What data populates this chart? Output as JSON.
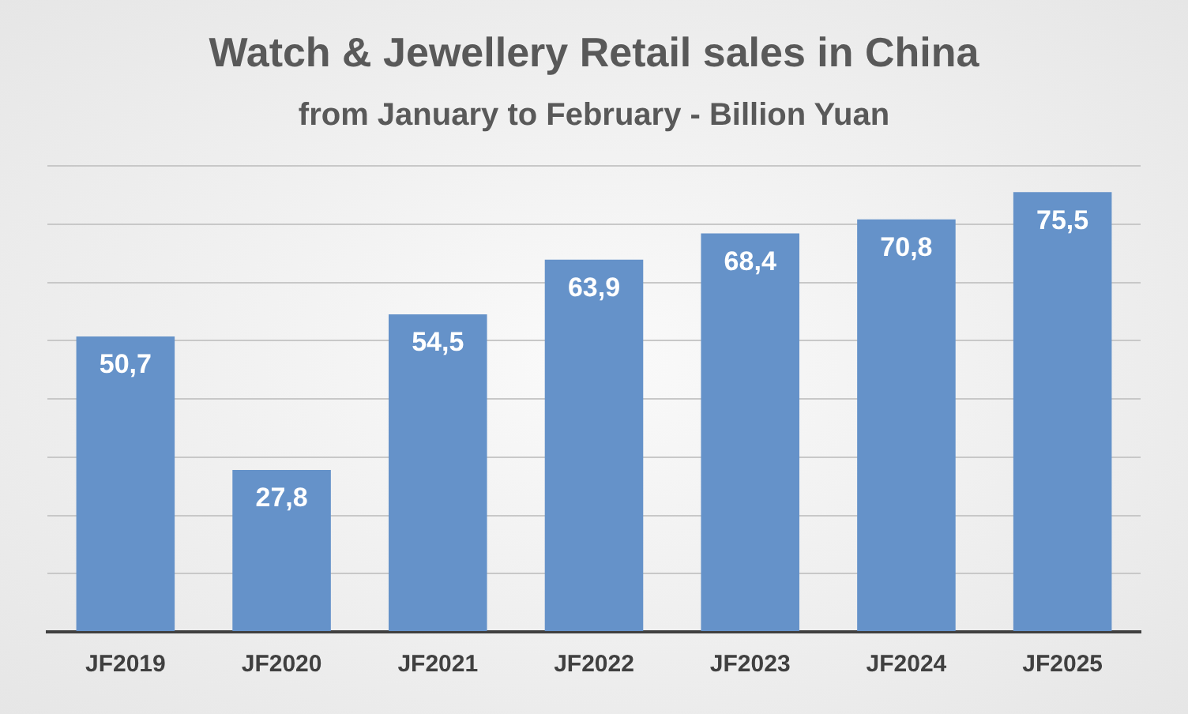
{
  "chart_data": {
    "type": "bar",
    "title": "Watch & Jewellery Retail sales in China",
    "subtitle": "from January to February - Billion Yuan",
    "categories": [
      "JF2019",
      "JF2020",
      "JF2021",
      "JF2022",
      "JF2023",
      "JF2024",
      "JF2025"
    ],
    "values": [
      50.7,
      27.8,
      54.5,
      63.9,
      68.4,
      70.8,
      75.5
    ],
    "value_labels": [
      "50,7",
      "27,8",
      "54,5",
      "63,9",
      "68,4",
      "70,8",
      "75,5"
    ],
    "color": "#6592c9",
    "grid": "y",
    "legend": false,
    "tick_labels": "x"
  }
}
